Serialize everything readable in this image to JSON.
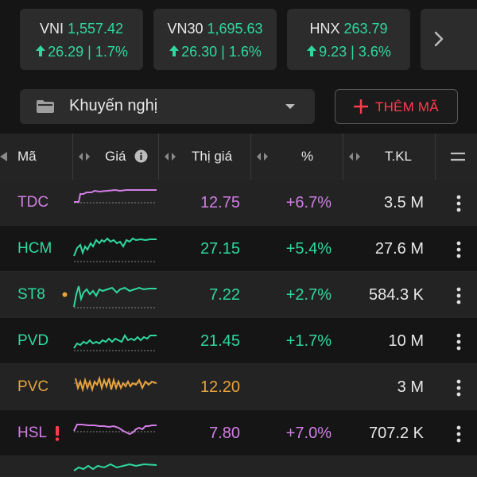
{
  "indices": [
    {
      "name": "VNI",
      "value": "1,557.42",
      "change": "26.29 | 1.7%"
    },
    {
      "name": "VN30",
      "value": "1,695.63",
      "change": "26.30 | 1.6%"
    },
    {
      "name": "HNX",
      "value": "263.79",
      "change": "9.23 | 3.6%"
    }
  ],
  "filter": {
    "label": "Khuyến nghị",
    "add_label": "THÊM MÃ"
  },
  "columns": {
    "symbol": "Mã",
    "chart": "Giá",
    "price": "Thị giá",
    "pct": "%",
    "volume": "T.KL"
  },
  "rows": [
    {
      "symbol": "TDC",
      "price": "12.75",
      "pct": "+6.7%",
      "volume": "3.5 M",
      "color": "#d27ee6"
    },
    {
      "symbol": "HCM",
      "price": "27.15",
      "pct": "+5.4%",
      "volume": "27.6 M",
      "color": "#2fd8a0"
    },
    {
      "symbol": "ST8",
      "price": "7.22",
      "pct": "+2.7%",
      "volume": "584.3 K",
      "color": "#2fd8a0"
    },
    {
      "symbol": "PVD",
      "price": "21.45",
      "pct": "+1.7%",
      "volume": "10 M",
      "color": "#2fd8a0"
    },
    {
      "symbol": "PVC",
      "price": "12.20",
      "pct": "",
      "volume": "3 M",
      "color": "#e8a33c"
    },
    {
      "symbol": "HSL",
      "price": "7.80",
      "pct": "+7.0%",
      "volume": "707.2 K",
      "color": "#d27ee6"
    }
  ],
  "colors": {
    "up": "#2fd8a0",
    "ceiling": "#d27ee6",
    "reference": "#e8a33c",
    "accent": "#ff3b50"
  },
  "icons": {
    "up_arrow": "arrow-up-icon",
    "next": "chevron-right-icon",
    "folder": "folder-icon",
    "caret": "caret-down-icon",
    "plus": "plus-icon",
    "info": "info-icon",
    "sort": "sort-arrows-icon",
    "menu": "hamburger-icon",
    "more": "more-vertical-icon"
  }
}
